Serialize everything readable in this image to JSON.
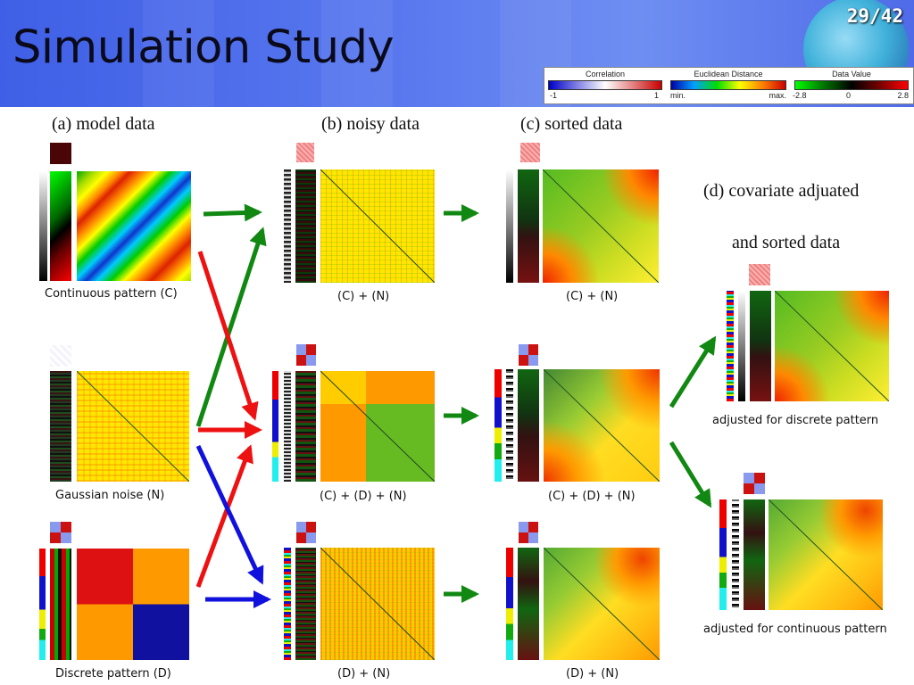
{
  "slide": {
    "title": "Simulation Study",
    "page_number": "29/42"
  },
  "legend": {
    "correlation": {
      "title": "Correlation",
      "min": "-1",
      "max": "1"
    },
    "euclidean": {
      "title": "Euclidean Distance",
      "min": "min.",
      "max": "max."
    },
    "data_value": {
      "title": "Data Value",
      "min": "-2.8",
      "mid": "0",
      "max": "2.8"
    }
  },
  "sections": {
    "a": "(a)  model data",
    "b": "(b) noisy data",
    "c": "(c) sorted data",
    "d_line1": "(d) covariate adjuated",
    "d_line2": "and sorted data"
  },
  "captions": {
    "continuous": "Continuous pattern (C)",
    "gaussian": "Gaussian noise (N)",
    "discrete": "Discrete pattern (D)",
    "noisy_cn": "(C) + (N)",
    "noisy_cdn": "(C) + (D) + (N)",
    "noisy_dn": "(D) + (N)",
    "sorted_cn": "(C) + (N)",
    "sorted_cdn": "(C) + (D) + (N)",
    "sorted_dn": "(D) + (N)",
    "adj_discrete": "adjusted for discrete pattern",
    "adj_continuous": "adjusted for continuous pattern"
  },
  "colors": {
    "arrow_green": "#118811",
    "arrow_red": "#ee1111",
    "arrow_blue": "#1111dd"
  }
}
